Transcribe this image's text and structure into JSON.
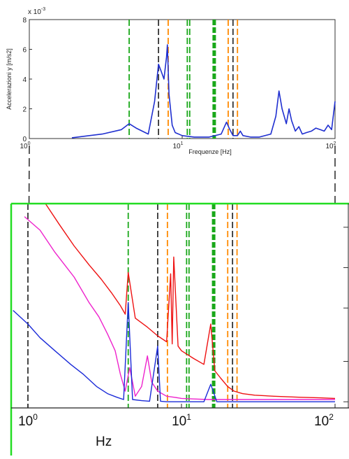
{
  "chart_data": [
    {
      "type": "line",
      "title": "",
      "xlabel": "Frequenze [Hz]",
      "ylabel": "Accelerazioni y [m/s2]",
      "y_exponent_label": "x 10",
      "y_exponent_power": "-3",
      "x_scale": "log",
      "xlim": [
        1,
        100
      ],
      "ylim": [
        0,
        8
      ],
      "x_tick_labels": [
        {
          "value": 1,
          "base": "10",
          "exp": "0"
        },
        {
          "value": 10,
          "base": "10",
          "exp": "1"
        },
        {
          "value": 100,
          "base": "10",
          "exp": "2"
        }
      ],
      "y_tick_labels": [
        "0",
        "2",
        "4",
        "6",
        "8"
      ],
      "y_ticks": [
        0,
        2,
        4,
        6,
        8
      ],
      "grid": false,
      "series": [
        {
          "color": "#1f2fd0",
          "x": [
            1.9,
            3.0,
            4.0,
            4.5,
            5.0,
            6.0,
            6.6,
            7.0,
            7.3,
            7.6,
            7.9,
            8.0,
            8.2,
            8.6,
            9.0,
            10.0,
            12.0,
            15.0,
            18.0,
            19.5,
            20.5,
            21.5,
            23.0,
            24.0,
            25.0,
            28.0,
            32.0,
            38.0,
            41.0,
            43.0,
            45.0,
            48.0,
            50.0,
            52.0,
            55.0,
            58.0,
            61.0,
            65.0,
            70.0,
            75.0,
            80.0,
            85.0,
            90.0,
            95.0,
            100.0
          ],
          "y": [
            0.05,
            0.3,
            0.6,
            1.0,
            0.7,
            0.3,
            2.5,
            5.0,
            4.5,
            4.0,
            5.5,
            6.3,
            3.0,
            0.9,
            0.4,
            0.2,
            0.1,
            0.1,
            0.3,
            1.1,
            0.6,
            0.2,
            0.2,
            0.5,
            0.2,
            0.1,
            0.1,
            0.3,
            1.5,
            3.2,
            2.0,
            1.0,
            2.0,
            1.2,
            0.5,
            0.8,
            0.3,
            0.4,
            0.5,
            0.7,
            0.6,
            0.5,
            0.9,
            0.6,
            2.5
          ]
        }
      ],
      "reference_lines": [
        {
          "x": 4.5,
          "color": "#1aa81a",
          "style": "dashed"
        },
        {
          "x": 7.0,
          "color": "#333333",
          "style": "dashed"
        },
        {
          "x": 8.1,
          "color": "#ff8a00",
          "style": "dashed"
        },
        {
          "x": 10.8,
          "color": "#1aa81a",
          "style": "dashed"
        },
        {
          "x": 11.2,
          "color": "#1aa81a",
          "style": "dashed"
        },
        {
          "x": 16.2,
          "color": "#1aa81a",
          "style": "dashed-thick"
        },
        {
          "x": 20.0,
          "color": "#ff8a00",
          "style": "dashed"
        },
        {
          "x": 21.5,
          "color": "#333333",
          "style": "dashed"
        },
        {
          "x": 23.0,
          "color": "#ff8a00",
          "style": "dashed"
        }
      ]
    },
    {
      "type": "line",
      "title": "",
      "xlabel": "Hz",
      "ylabel": "",
      "x_scale": "log",
      "y_scale": "log",
      "xlim": [
        0.8,
        100
      ],
      "x_tick_labels": [
        {
          "value": 1,
          "base": "10",
          "exp": "0"
        },
        {
          "value": 10,
          "base": "10",
          "exp": "1"
        },
        {
          "value": 100,
          "base": "10",
          "exp": "2"
        }
      ],
      "grid": false,
      "series": [
        {
          "color": "#ee1111",
          "x": [
            1.3,
            1.6,
            2.0,
            2.5,
            3.0,
            3.5,
            4.0,
            4.3,
            4.5,
            5.0,
            6.0,
            7.0,
            8.0,
            8.5,
            8.7,
            8.9,
            9.5,
            10,
            12,
            14,
            15.5,
            16.5,
            18,
            20,
            22,
            25,
            30,
            40,
            60,
            80,
            100
          ],
          "y": [
            3.0,
            2.1,
            1.45,
            1.05,
            0.82,
            0.65,
            0.52,
            0.45,
            0.92,
            0.42,
            0.36,
            0.31,
            0.28,
            0.9,
            0.27,
            1.2,
            0.26,
            0.24,
            0.21,
            0.19,
            0.38,
            0.17,
            0.15,
            0.13,
            0.12,
            0.115,
            0.112,
            0.11,
            0.108,
            0.107,
            0.106
          ]
        },
        {
          "color": "#ee22cc",
          "x": [
            0.95,
            1.2,
            1.5,
            2.0,
            2.5,
            2.9,
            3.3,
            3.7,
            4.0,
            4.3,
            4.6,
            5.0,
            5.5,
            6.0,
            6.4,
            7.0,
            8.0,
            9.0,
            10,
            12,
            15,
            20,
            30,
            50,
            100
          ],
          "y": [
            2.4,
            1.9,
            1.3,
            0.85,
            0.55,
            0.43,
            0.32,
            0.24,
            0.16,
            0.12,
            0.18,
            0.11,
            0.13,
            0.22,
            0.14,
            0.12,
            0.11,
            0.108,
            0.106,
            0.105,
            0.104,
            0.104,
            0.104,
            0.104,
            0.104
          ]
        },
        {
          "color": "#1a2ad8",
          "x": [
            0.8,
            1.0,
            1.2,
            1.5,
            1.9,
            2.3,
            2.8,
            3.3,
            3.8,
            4.2,
            4.5,
            4.8,
            5.5,
            6.2,
            7.0,
            7.3,
            8.0,
            10,
            12,
            14,
            15.5,
            17,
            20,
            25,
            30,
            50,
            100
          ],
          "y": [
            0.48,
            0.38,
            0.3,
            0.24,
            0.19,
            0.16,
            0.13,
            0.115,
            0.108,
            0.104,
            0.55,
            0.104,
            0.102,
            0.101,
            0.26,
            0.101,
            0.1,
            0.1,
            0.1,
            0.1,
            0.135,
            0.1,
            0.1,
            0.1,
            0.1,
            0.1,
            0.1
          ]
        }
      ],
      "reference_lines": [
        {
          "x": 1.0,
          "color": "#333333",
          "style": "dashed"
        },
        {
          "x": 4.5,
          "color": "#1aa81a",
          "style": "dashed"
        },
        {
          "x": 7.0,
          "color": "#333333",
          "style": "dashed"
        },
        {
          "x": 8.1,
          "color": "#ff8a00",
          "style": "dashed"
        },
        {
          "x": 10.8,
          "color": "#1aa81a",
          "style": "dashed"
        },
        {
          "x": 11.2,
          "color": "#1aa81a",
          "style": "dashed"
        },
        {
          "x": 16.2,
          "color": "#1aa81a",
          "style": "dashed-thick"
        },
        {
          "x": 20.0,
          "color": "#ff8a00",
          "style": "dashed"
        },
        {
          "x": 21.5,
          "color": "#333333",
          "style": "dashed"
        },
        {
          "x": 23.0,
          "color": "#ff8a00",
          "style": "dashed"
        }
      ]
    }
  ],
  "colors": {
    "frame_green": "#22dd22",
    "connector_dash": "#333333"
  }
}
